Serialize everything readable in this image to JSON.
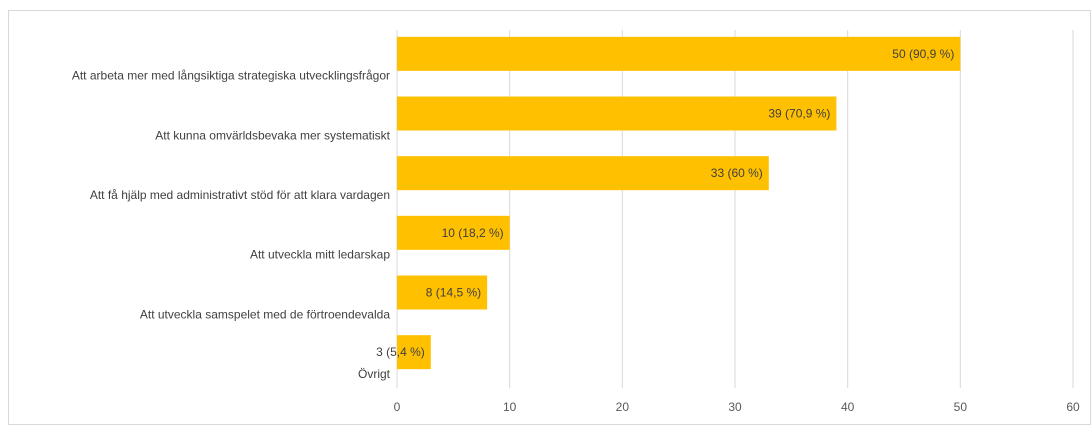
{
  "chart_data": {
    "type": "bar",
    "orientation": "horizontal",
    "categories": [
      "Att arbeta mer med långsiktiga strategiska utvecklingsfrågor",
      "Att kunna omvärldsbevaka mer systematiskt",
      "Att få hjälp med administrativt stöd för att klara vardagen",
      "Att utveckla mitt ledarskap",
      "Att utveckla samspelet med de förtroendevalda",
      "Övrigt"
    ],
    "values": [
      50,
      39,
      33,
      10,
      8,
      3
    ],
    "data_labels": [
      "50 (90,9 %)",
      "39 (70,9 %)",
      "33 (60 %)",
      "10 (18,2 %)",
      "8 (14,5 %)",
      "3 (5,4 %)"
    ],
    "x_ticks": [
      "0",
      "10",
      "20",
      "30",
      "40",
      "50",
      "60"
    ],
    "xlim": [
      0,
      60
    ],
    "grid": true,
    "bar_color": "#FFC000",
    "grid_color": "#d9d9d9"
  }
}
